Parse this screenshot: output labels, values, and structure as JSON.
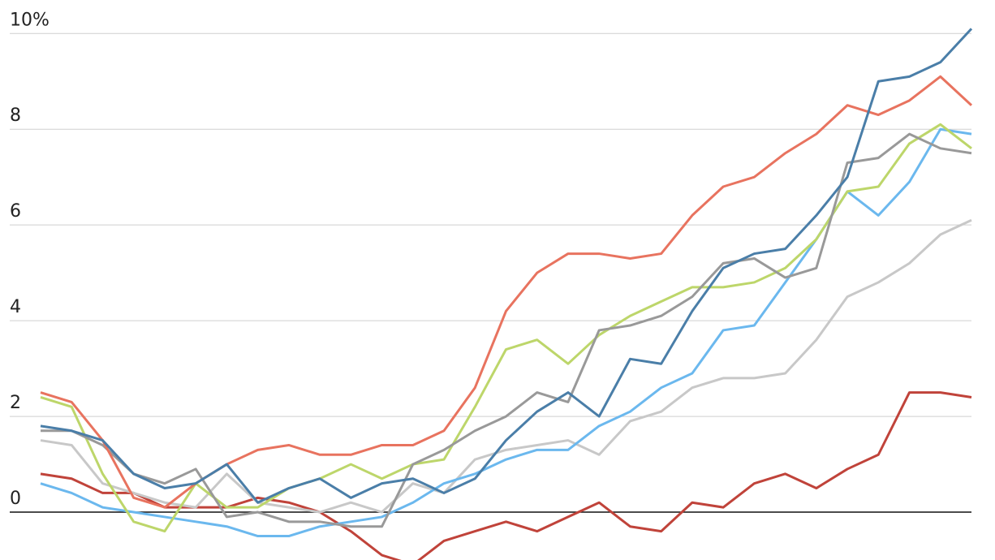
{
  "chart_data": {
    "type": "line",
    "categories": [
      null,
      null,
      null,
      null,
      null,
      null,
      null,
      null,
      null,
      null,
      null,
      null,
      null,
      null,
      null,
      null,
      null,
      null,
      null,
      null,
      null,
      null,
      null,
      null,
      null,
      null,
      null,
      null,
      null,
      null,
      null
    ],
    "ylim": [
      -1.0,
      10.7
    ],
    "yticks": [
      {
        "value": 10,
        "label": "10%"
      },
      8,
      6,
      4,
      2,
      0
    ],
    "grid": true,
    "series": [
      {
        "color": "#c0433a",
        "values": [
          0.8,
          0.7,
          0.4,
          0.4,
          0.1,
          0.1,
          0.1,
          0.3,
          0.2,
          0.0,
          -0.4,
          -0.9,
          -1.1,
          -0.6,
          -0.4,
          -0.2,
          -0.4,
          -0.1,
          0.2,
          -0.3,
          -0.4,
          0.2,
          0.1,
          0.6,
          0.8,
          0.5,
          0.9,
          1.2,
          2.5,
          2.5,
          2.4
        ]
      },
      {
        "color": "#c8c8c8",
        "values": [
          1.5,
          1.4,
          0.6,
          0.4,
          0.2,
          0.1,
          0.8,
          0.2,
          0.1,
          0.0,
          0.2,
          0.0,
          0.6,
          0.4,
          1.1,
          1.3,
          1.4,
          1.5,
          1.2,
          1.9,
          2.1,
          2.6,
          2.8,
          2.8,
          2.9,
          3.6,
          4.5,
          4.8,
          5.2,
          5.8,
          6.1
        ]
      },
      {
        "color": "#6bb8ee",
        "values": [
          0.6,
          0.4,
          0.1,
          0.0,
          -0.1,
          -0.2,
          -0.3,
          -0.5,
          -0.5,
          -0.3,
          -0.2,
          -0.1,
          0.2,
          0.6,
          0.8,
          1.1,
          1.3,
          1.3,
          1.8,
          2.1,
          2.6,
          2.9,
          3.8,
          3.9,
          4.8,
          5.7,
          6.7,
          6.2,
          6.9,
          8.0,
          7.9
        ]
      },
      {
        "color": "#bdd66a",
        "values": [
          2.4,
          2.2,
          0.8,
          -0.2,
          -0.4,
          0.6,
          0.1,
          0.1,
          0.5,
          0.7,
          1.0,
          0.7,
          1.0,
          1.1,
          2.2,
          3.4,
          3.6,
          3.1,
          3.7,
          4.1,
          4.4,
          4.7,
          4.7,
          4.8,
          5.1,
          5.7,
          6.7,
          6.8,
          7.7,
          8.1,
          7.6
        ]
      },
      {
        "color": "#999999",
        "values": [
          1.7,
          1.7,
          1.4,
          0.8,
          0.6,
          0.9,
          -0.1,
          0.0,
          -0.2,
          -0.2,
          -0.3,
          -0.3,
          1.0,
          1.3,
          1.7,
          2.0,
          2.5,
          2.3,
          3.8,
          3.9,
          4.1,
          4.5,
          5.2,
          5.3,
          4.9,
          5.1,
          7.3,
          7.4,
          7.9,
          7.6,
          7.5
        ]
      },
      {
        "color": "#e8735f",
        "values": [
          2.5,
          2.3,
          1.5,
          0.3,
          0.1,
          0.6,
          1.0,
          1.3,
          1.4,
          1.2,
          1.2,
          1.4,
          1.4,
          1.7,
          2.6,
          4.2,
          5.0,
          5.4,
          5.4,
          5.3,
          5.4,
          6.2,
          6.8,
          7.0,
          7.5,
          7.9,
          8.5,
          8.3,
          8.6,
          9.1,
          8.5
        ]
      },
      {
        "color": "#4a7ea8",
        "values": [
          1.8,
          1.7,
          1.5,
          0.8,
          0.5,
          0.6,
          1.0,
          0.2,
          0.5,
          0.7,
          0.3,
          0.6,
          0.7,
          0.4,
          0.7,
          1.5,
          2.1,
          2.5,
          2.0,
          3.2,
          3.1,
          4.2,
          5.1,
          5.4,
          5.5,
          6.2,
          7.0,
          9.0,
          9.1,
          9.4,
          10.1
        ]
      }
    ]
  }
}
